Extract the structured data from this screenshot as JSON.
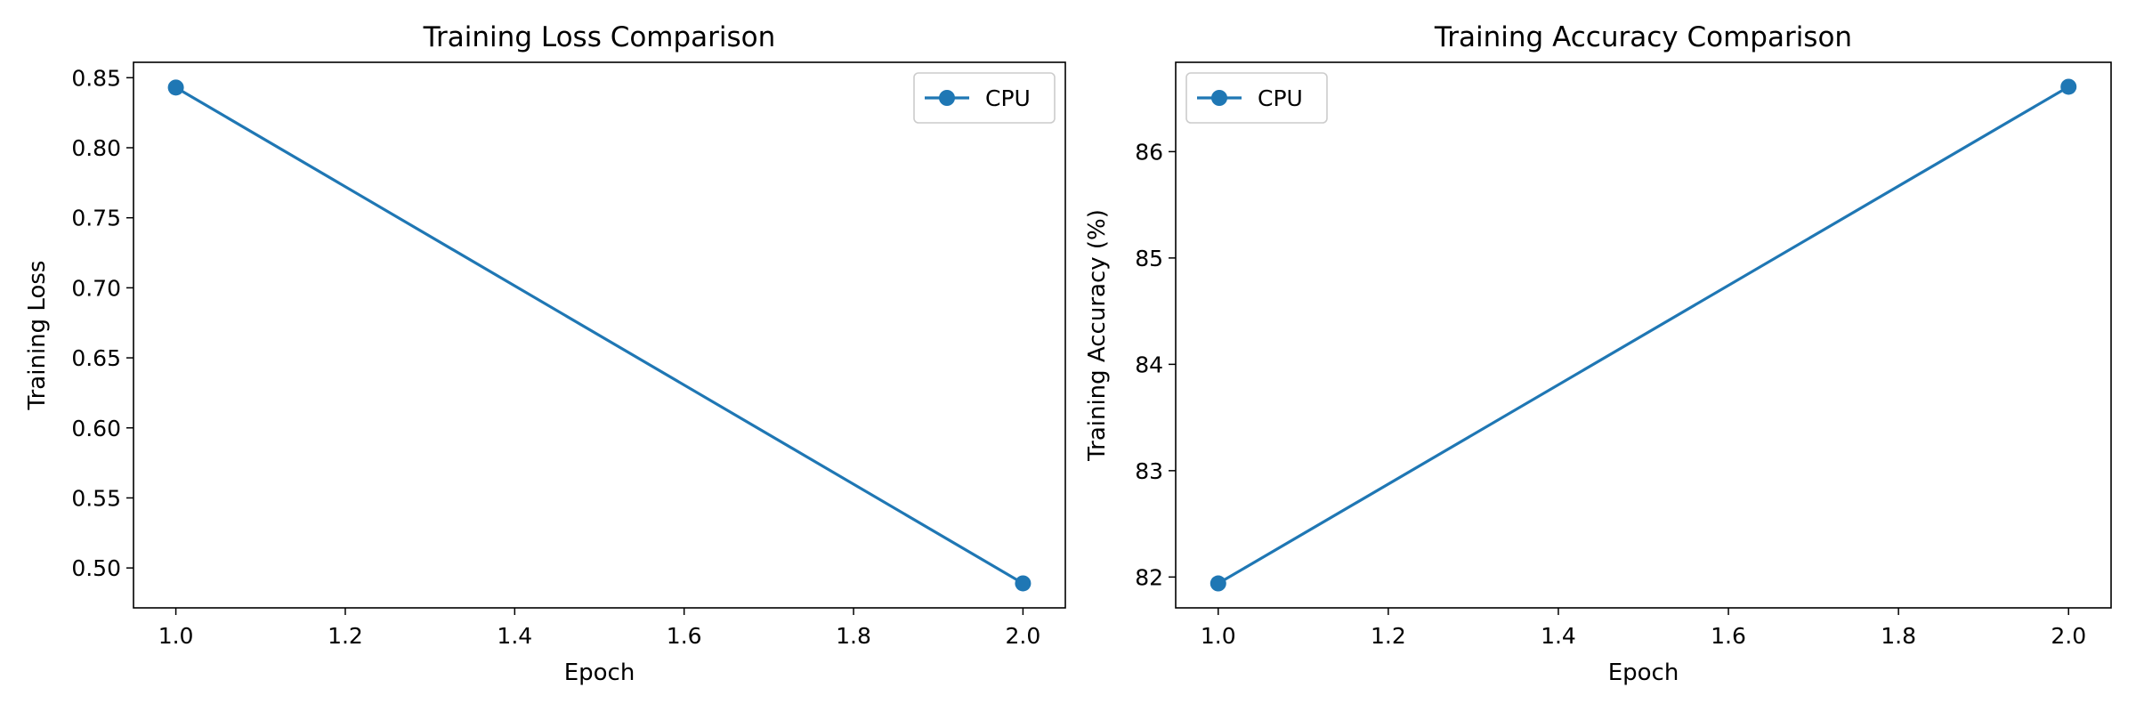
{
  "chart_data": [
    {
      "type": "line",
      "title": "Training Loss Comparison",
      "xlabel": "Epoch",
      "ylabel": "Training Loss",
      "xlim": [
        0.95,
        2.05
      ],
      "ylim": [
        0.4715,
        0.861
      ],
      "xticks": [
        1.0,
        1.2,
        1.4,
        1.6,
        1.8,
        2.0
      ],
      "xtick_labels": [
        "1.0",
        "1.2",
        "1.4",
        "1.6",
        "1.8",
        "2.0"
      ],
      "yticks": [
        0.5,
        0.55,
        0.6,
        0.65,
        0.7,
        0.75,
        0.8,
        0.85
      ],
      "ytick_labels": [
        "0.50",
        "0.55",
        "0.60",
        "0.65",
        "0.70",
        "0.75",
        "0.80",
        "0.85"
      ],
      "grid": false,
      "legend": "top-right",
      "series": [
        {
          "name": "CPU",
          "color": "#1f77b4",
          "marker": "circle",
          "x": [
            1,
            2
          ],
          "y": [
            0.843,
            0.489
          ]
        }
      ]
    },
    {
      "type": "line",
      "title": "Training Accuracy Comparison",
      "xlabel": "Epoch",
      "ylabel": "Training Accuracy (%)",
      "xlim": [
        0.95,
        2.05
      ],
      "ylim": [
        81.71,
        86.84
      ],
      "xticks": [
        1.0,
        1.2,
        1.4,
        1.6,
        1.8,
        2.0
      ],
      "xtick_labels": [
        "1.0",
        "1.2",
        "1.4",
        "1.6",
        "1.8",
        "2.0"
      ],
      "yticks": [
        82,
        83,
        84,
        85,
        86
      ],
      "ytick_labels": [
        "82",
        "83",
        "84",
        "85",
        "86"
      ],
      "grid": false,
      "legend": "top-left",
      "series": [
        {
          "name": "CPU",
          "color": "#1f77b4",
          "marker": "circle",
          "x": [
            1,
            2
          ],
          "y": [
            81.94,
            86.61
          ]
        }
      ]
    }
  ]
}
